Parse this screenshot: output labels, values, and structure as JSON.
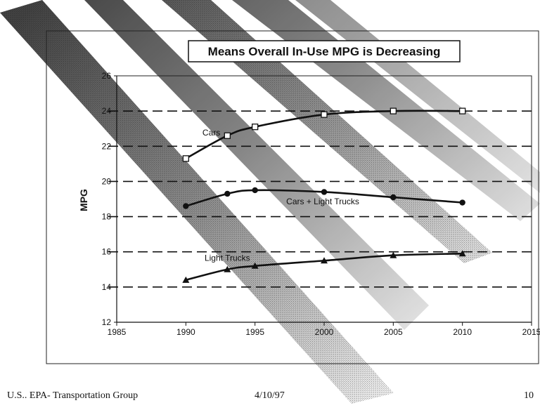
{
  "chart_data": {
    "type": "line",
    "title": "Means Overall In-Use MPG is Decreasing",
    "xlabel": "",
    "ylabel": "MPG",
    "xlim": [
      1985,
      2015
    ],
    "ylim": [
      12,
      26
    ],
    "x_ticks": [
      "1985",
      "1990",
      "1995",
      "2000",
      "2005",
      "2010",
      "2015"
    ],
    "y_ticks": [
      "12",
      "14",
      "16",
      "18",
      "20",
      "22",
      "24",
      "26"
    ],
    "grid": "horizontal dashed",
    "series": [
      {
        "name": "Cars",
        "marker": "square",
        "x": [
          1990,
          1993,
          1995,
          2000,
          2005,
          2010
        ],
        "y": [
          21.3,
          22.6,
          23.1,
          23.8,
          24.0,
          24.0
        ]
      },
      {
        "name": "Cars + Light Trucks",
        "marker": "circle",
        "x": [
          1990,
          1993,
          1995,
          2000,
          2005,
          2010
        ],
        "y": [
          18.6,
          19.3,
          19.5,
          19.4,
          19.1,
          18.8
        ]
      },
      {
        "name": "Light Trucks",
        "marker": "triangle",
        "x": [
          1990,
          1993,
          1995,
          2000,
          2005,
          2010
        ],
        "y": [
          14.4,
          15.0,
          15.2,
          15.5,
          15.8,
          15.9
        ]
      }
    ]
  },
  "footer": {
    "left": "U.S.. EPA- Transportation Group",
    "center": "4/10/97",
    "page": "10"
  }
}
